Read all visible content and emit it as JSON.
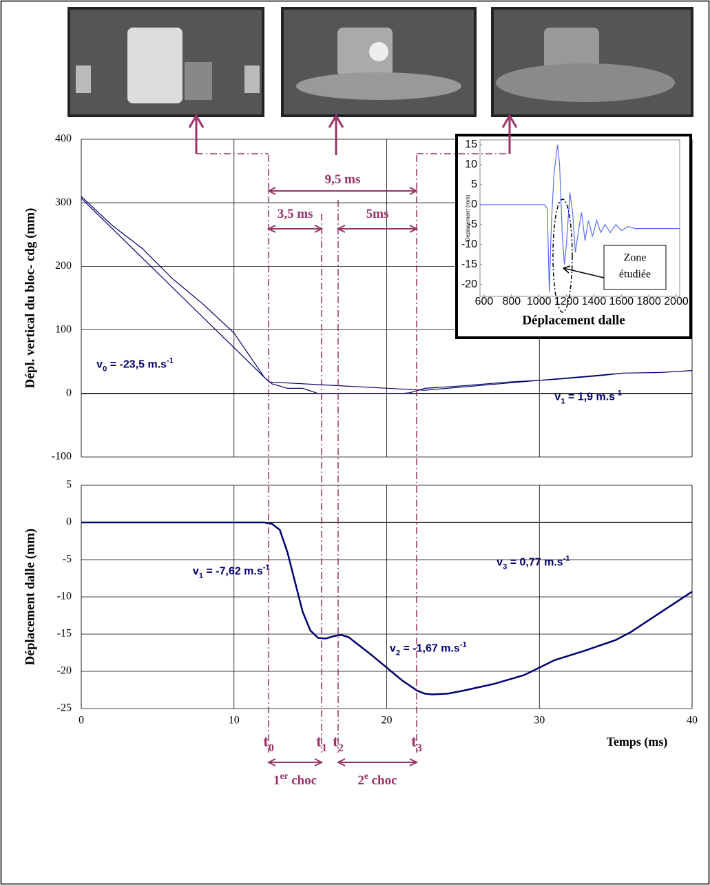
{
  "chart_data": [
    {
      "type": "line",
      "ylabel": "Dépl. vertical du bloc- cdg (mm)",
      "xlim": [
        0,
        40
      ],
      "xticks": [
        0,
        10,
        20,
        30,
        40
      ],
      "show_xtick_labels": false,
      "ylim": [
        -100,
        400
      ],
      "yticks": [
        -100,
        0,
        100,
        200,
        300,
        400
      ],
      "grid": true,
      "series": [
        {
          "color": "#00006e",
          "width": 1.2,
          "x": [
            0,
            2,
            4,
            6,
            8,
            10,
            12,
            12.5,
            13.5,
            14.5,
            15.5,
            17,
            19,
            21,
            21.5,
            22.5,
            25,
            28,
            31,
            34,
            35.5,
            38,
            40
          ],
          "values": [
            310,
            265,
            228,
            180,
            140,
            95,
            25,
            15,
            8,
            8,
            0,
            0,
            0,
            0,
            1,
            8,
            12,
            18,
            22,
            28,
            32,
            33,
            36
          ]
        },
        {
          "color": "#00006e",
          "width": 1.2,
          "x": [
            0,
            12.3,
            22.5,
            35.5
          ],
          "values": [
            307,
            18,
            5,
            32
          ]
        }
      ],
      "annotations": [
        {
          "x": 1,
          "y": 45,
          "parts": [
            {
              "t": "v"
            },
            {
              "t": "0",
              "shift": "sub"
            },
            {
              "t": " = -23,5 m.s"
            },
            {
              "t": "-1",
              "shift": "super"
            }
          ]
        },
        {
          "x": 31,
          "y": -6,
          "parts": [
            {
              "t": "v"
            },
            {
              "t": "1",
              "shift": "sub"
            },
            {
              "t": " = 1,9 m.s"
            },
            {
              "t": "-1",
              "shift": "super"
            }
          ]
        }
      ]
    },
    {
      "type": "line",
      "ylabel": "Déplacement dalle (mm)",
      "xlabel": "Temps (ms)",
      "xlim": [
        0,
        40
      ],
      "xticks": [
        0,
        10,
        20,
        30,
        40
      ],
      "show_xtick_labels": true,
      "ylim": [
        -25,
        5
      ],
      "yticks": [
        -25,
        -20,
        -15,
        -10,
        -5,
        0,
        5
      ],
      "grid": true,
      "series": [
        {
          "color": "#00006e",
          "width": 2.5,
          "x": [
            0,
            12,
            12.5,
            13,
            13.5,
            14,
            14.5,
            15,
            15.5,
            16,
            16.5,
            17,
            17.5,
            18,
            19,
            20,
            21,
            22,
            22.5,
            23,
            24,
            25,
            27,
            29,
            31,
            33,
            35,
            36,
            38,
            40
          ],
          "values": [
            0,
            0,
            -0.2,
            -1,
            -4,
            -8,
            -12,
            -14.5,
            -15.5,
            -15.6,
            -15.3,
            -15.1,
            -15.4,
            -16.2,
            -17.8,
            -19.5,
            -21.2,
            -22.6,
            -23,
            -23.1,
            -23,
            -22.6,
            -21.7,
            -20.5,
            -18.5,
            -17.2,
            -15.8,
            -14.7,
            -12,
            -9.3
          ]
        }
      ],
      "annotations": [
        {
          "x": 7.3,
          "y": -6.6,
          "parts": [
            {
              "t": "v"
            },
            {
              "t": "1",
              "shift": "sub"
            },
            {
              "t": " = -7,62 m.s"
            },
            {
              "t": "-1",
              "shift": "super"
            }
          ]
        },
        {
          "x": 20.2,
          "y": -17,
          "parts": [
            {
              "t": "v"
            },
            {
              "t": "2",
              "shift": "sub"
            },
            {
              "t": " = -1,67 m.s"
            },
            {
              "t": "-1",
              "shift": "super"
            }
          ]
        },
        {
          "x": 27.2,
          "y": -5.4,
          "parts": [
            {
              "t": "v"
            },
            {
              "t": "3",
              "shift": "sub"
            },
            {
              "t": " = 0,77 m.s"
            },
            {
              "t": "-1",
              "shift": "super"
            }
          ]
        }
      ]
    },
    {
      "type": "line",
      "title": "Déplacement dalle",
      "ylabel": "Deplacement (mm)",
      "xlim": [
        570,
        2025
      ],
      "xticks": [
        600,
        800,
        1000,
        1200,
        1400,
        1600,
        1800,
        2000
      ],
      "show_xtick_labels": true,
      "ylim": [
        -23,
        16.2
      ],
      "yticks": [
        -20,
        -15,
        -10,
        -5,
        0,
        5,
        10,
        15
      ],
      "grid": false,
      "series": [
        {
          "color": "#5a6cf0",
          "width": 1.2,
          "x": [
            570,
            1040,
            1060,
            1075,
            1090,
            1110,
            1135,
            1150,
            1170,
            1185,
            1200,
            1225,
            1245,
            1265,
            1290,
            1310,
            1335,
            1360,
            1390,
            1420,
            1450,
            1480,
            1520,
            1560,
            1600,
            1650,
            1700,
            1800,
            2025
          ],
          "values": [
            0,
            0,
            -1,
            -22,
            -5,
            8,
            15,
            10,
            -8,
            -15,
            -10,
            3,
            -2,
            -12,
            -6,
            -2,
            -9,
            -4,
            -8,
            -4,
            -7,
            -5,
            -7,
            -5,
            -6.5,
            -5.5,
            -6,
            -6,
            -6
          ]
        }
      ],
      "callout": [
        "Zone",
        "étudiée"
      ]
    }
  ],
  "timing": {
    "markers": [
      {
        "x": 12.27,
        "parts": [
          {
            "t": "t"
          },
          {
            "t": "0",
            "shift": "sub"
          }
        ]
      },
      {
        "x": 15.74,
        "parts": [
          {
            "t": "t"
          },
          {
            "t": "1",
            "shift": "sub"
          }
        ]
      },
      {
        "x": 16.82,
        "parts": [
          {
            "t": "t"
          },
          {
            "t": "2",
            "shift": "sub"
          }
        ]
      },
      {
        "x": 21.96,
        "parts": [
          {
            "t": "t"
          },
          {
            "t": "3",
            "shift": "sub"
          }
        ]
      }
    ],
    "intervals": [
      {
        "parts": [
          {
            "t": "9,5 ms"
          }
        ]
      },
      {
        "parts": [
          {
            "t": "3,5 ms"
          }
        ]
      },
      {
        "parts": [
          {
            "t": "5ms"
          }
        ]
      },
      {
        "parts": [
          {
            "t": "1"
          },
          {
            "t": "er",
            "shift": "super"
          },
          {
            "t": " choc"
          }
        ]
      },
      {
        "parts": [
          {
            "t": "2"
          },
          {
            "t": "e",
            "shift": "super"
          },
          {
            "t": " choc"
          }
        ]
      }
    ]
  }
}
